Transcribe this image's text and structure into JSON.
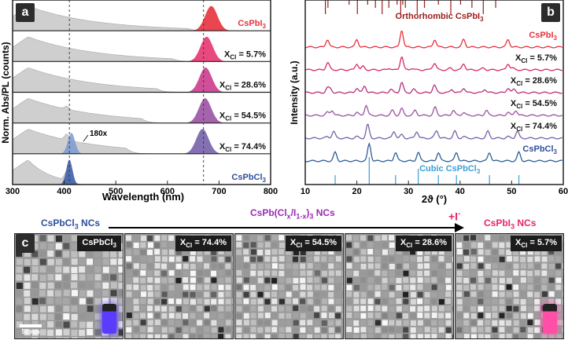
{
  "panel_a": {
    "letter": "a",
    "ylabel": "Norm. Abs/PL (counts)",
    "xlabel": "Wavelength (nm)",
    "xticks": [
      "300",
      "400",
      "500",
      "600",
      "700",
      "800"
    ],
    "samples": [
      {
        "label": "CsPbI",
        "sub": "3",
        "suffix": "",
        "pl_peak_nm": 685,
        "color": "#e8323c"
      },
      {
        "label": "X",
        "sub": "Cl",
        "suffix": " = 5.7%",
        "pl_peak_nm": 676,
        "color": "#e73572"
      },
      {
        "label": "X",
        "sub": "Cl",
        "suffix": " = 28.6%",
        "pl_peak_nm": 674,
        "color": "#cc3c8e"
      },
      {
        "label": "X",
        "sub": "Cl",
        "suffix": " = 54.5%",
        "pl_peak_nm": 673,
        "color": "#9c52a4"
      },
      {
        "label": "X",
        "sub": "Cl",
        "suffix": " = 74.4%",
        "pl_peak_nm": 668,
        "color": "#7762aa"
      },
      {
        "label": "CsPbCl",
        "sub": "3",
        "suffix": "",
        "pl_peak_nm": 410,
        "color": "#3f5fa8"
      }
    ],
    "annotation": "180x",
    "dashed_lines_nm": [
      410,
      670
    ]
  },
  "panel_b": {
    "letter": "b",
    "ylabel": "Intensity (a.u.)",
    "xlabel": "2ϑ (°)",
    "xticks": [
      "10",
      "20",
      "30",
      "40",
      "50",
      "60"
    ],
    "ref_top_label": "Orthorhombic CsPbI",
    "ref_top_sub": "3",
    "ref_bottom_label": "Cubic CsPbCl",
    "ref_bottom_sub": "3",
    "ref_top_color": "#9b1c1c",
    "ref_bottom_color": "#3aa0d8"
  },
  "panel_c": {
    "letter": "c",
    "left_header": "CsPbCl",
    "left_header_sub": "3",
    "left_header_tail": " NCs",
    "middle_header": "CsPb(Cl",
    "middle_header_sub1": "x",
    "middle_header_mid": "/I",
    "middle_header_sub2": "1-x",
    "middle_header_tail": ")",
    "middle_header_sub3": "3",
    "middle_header_end": " NCs",
    "plus_label": "+I",
    "plus_sup": "-",
    "right_header": "CsPbI",
    "right_header_sub": "3",
    "right_header_tail": " NCs",
    "scale_bar": "50 nm",
    "images": [
      {
        "label": "CsPbCl",
        "sub": "3",
        "suffix": ""
      },
      {
        "label": "X",
        "sub": "Cl",
        "suffix": " = 74.4%"
      },
      {
        "label": "X",
        "sub": "Cl",
        "suffix": " = 54.5%"
      },
      {
        "label": "X",
        "sub": "Cl",
        "suffix": " = 28.6%"
      },
      {
        "label": "X",
        "sub": "Cl",
        "suffix": " = 5.7%"
      }
    ],
    "colors": {
      "blue": "#2d4f9e",
      "purple": "#9c2ab5",
      "pink": "#e8246e",
      "vial_blue": "#5a3cff",
      "vial_pink": "#ff4fa6"
    }
  }
}
